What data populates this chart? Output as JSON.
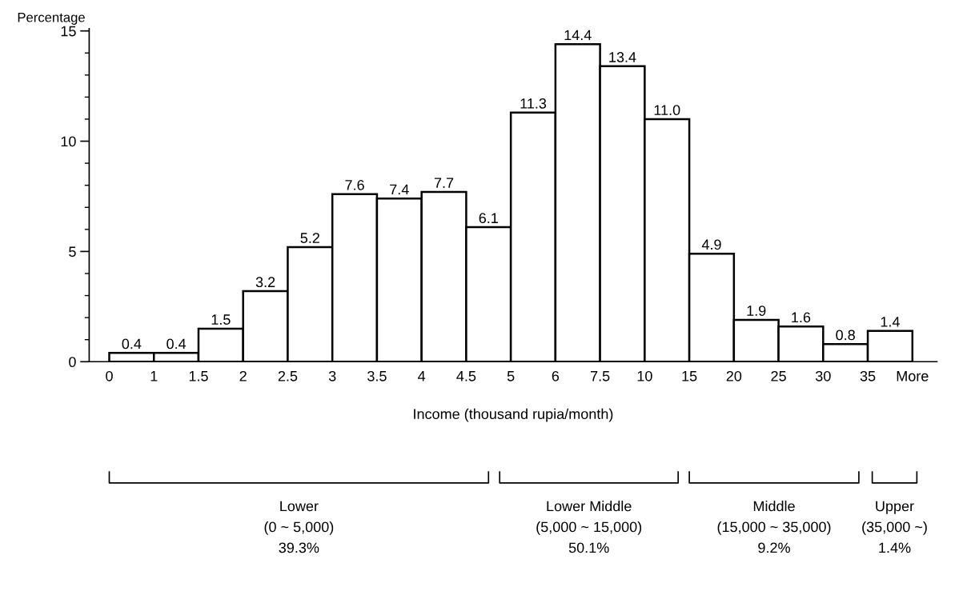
{
  "chart_data": {
    "type": "bar",
    "ylabel": "Percentage",
    "xlabel": "Income (thousand rupia/month)",
    "categories": [
      "0",
      "1",
      "1.5",
      "2",
      "2.5",
      "3",
      "3.5",
      "4",
      "4.5",
      "5",
      "6",
      "7.5",
      "10",
      "15",
      "20",
      "25",
      "30",
      "35",
      "More"
    ],
    "values": [
      0.4,
      0.4,
      1.5,
      3.2,
      5.2,
      7.6,
      7.4,
      7.7,
      6.1,
      11.3,
      14.4,
      13.4,
      11.0,
      4.9,
      1.9,
      1.6,
      0.8,
      1.4,
      null
    ],
    "data_labels": true,
    "value_labels": [
      "0.4",
      "0.4",
      "1.5",
      "3.2",
      "5.2",
      "7.6",
      "7.4",
      "7.7",
      "6.1",
      "11.3",
      "14.4",
      "13.4",
      "11.0",
      "4.9",
      "1.9",
      "1.6",
      "0.8",
      "1.4",
      null
    ],
    "color": "#ffffff",
    "ylim": [
      0,
      15.1
    ],
    "yticks": [
      0,
      5,
      10,
      15
    ],
    "grid": false,
    "annotations": [
      "Lower\n(0 ~ 5,000)\n39.3%",
      "Lower Middle\n(5,000 ~ 15,000)\n50.1%",
      "Middle\n(15,000 ~ 35,000)\n9.2%",
      "Upper\n(35,000 ~)\n1.4%"
    ]
  }
}
